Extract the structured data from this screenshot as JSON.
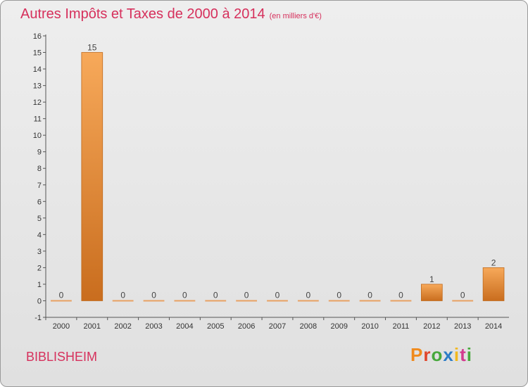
{
  "header": {
    "title": "Autres Impôts et Taxes de 2000 à 2014",
    "subtitle": "(en milliers d'€)"
  },
  "footer": {
    "place": "BIBLISHEIM",
    "logo_letters": [
      "P",
      "r",
      "o",
      "x",
      "i",
      "t",
      "i"
    ]
  },
  "colors": {
    "title": "#d6305c",
    "bar_light": "#f7a95a",
    "bar_dark": "#c96d1e"
  },
  "chart_data": {
    "type": "bar",
    "title": "Autres Impôts et Taxes de 2000 à 2014",
    "subtitle": "(en milliers d'€)",
    "categories": [
      "2000",
      "2001",
      "2002",
      "2003",
      "2004",
      "2005",
      "2006",
      "2007",
      "2008",
      "2009",
      "2010",
      "2011",
      "2012",
      "2013",
      "2014"
    ],
    "values": [
      0,
      15,
      0,
      0,
      0,
      0,
      0,
      0,
      0,
      0,
      0,
      0,
      1,
      0,
      2
    ],
    "ylim": [
      -1,
      16
    ],
    "yticks": [
      -1,
      0,
      1,
      2,
      3,
      4,
      5,
      6,
      7,
      8,
      9,
      10,
      11,
      12,
      13,
      14,
      15,
      16
    ],
    "grid": false,
    "legend": "none"
  }
}
